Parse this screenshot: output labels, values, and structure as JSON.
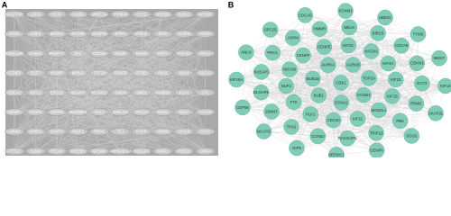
{
  "panel_a": {
    "label": "A",
    "nodes": [
      "GOLPH3L",
      "LDHD",
      "DCAF",
      "GINS2",
      "LRRC14",
      "TRIM46",
      "CCT2",
      "HDHD5",
      "ESPL1",
      "MYO1F",
      "EXO1",
      "CDC6",
      "MCM10",
      "KIF18B",
      "CENPW",
      "BRIP1",
      "POLQ",
      "E2F8",
      "CLSPN",
      "FANCI",
      "RAD51AP1",
      "CHEK1",
      "PKMYT1",
      "DTL",
      "CDC45",
      "MCM2",
      "MCM4",
      "ORC1",
      "POLE2",
      "RFC4",
      "CCNE2",
      "E2F7",
      "HJURP",
      "MYBL2",
      "TCF19",
      "FBXO5",
      "GTSE1",
      "SKA1",
      "SKA3",
      "CDCA3",
      "CDCA2",
      "KIFC1",
      "ESCO2",
      "NCAPH",
      "NCAPD2",
      "SMC4",
      "SMC2",
      "FAM83D",
      "PLK4",
      "STIL",
      "CENPU",
      "CENPK",
      "CENPN",
      "MIS18BP1",
      "KNL1",
      "ZWILCH",
      "SPC24",
      "DSN1",
      "NEK2",
      "TACC3",
      "LMNB1",
      "UHRF1",
      "DNMT1",
      "H2AFZ",
      "RRM1",
      "TK1",
      "DHFR",
      "GMNN",
      "CKS1B",
      "CKS2",
      "PTTG1",
      "AUNIP",
      "TROAP",
      "SHCBP1",
      "GPSM2",
      "ARHGAP11A",
      "IQGAP3",
      "MND1",
      "PSRC1",
      "DBF4"
    ]
  },
  "panel_b": {
    "label": "B",
    "nodes": [
      "CDK1",
      "CCNB1",
      "CCNA2",
      "BUB1",
      "BUB1B",
      "AURKA",
      "AURKB",
      "TOP2A",
      "KIF11",
      "CDC20",
      "PLK1",
      "TTK",
      "NUF2",
      "NDC80",
      "CENPF",
      "CENPE",
      "KIF2C",
      "KIF20A",
      "KIF4A",
      "KIF23",
      "KIF15",
      "MAD2L1",
      "CCNB2",
      "TPX2",
      "ZWINT",
      "DLGAP5",
      "NUSAP1",
      "PRC1",
      "ASPM",
      "HMMR",
      "MELK",
      "BIRC5",
      "CDCA8",
      "CDKN3",
      "ECT2",
      "RRM2",
      "PBK",
      "TRIP13",
      "RACGAP1",
      "NCAPG",
      "CEP55",
      "KIF18A",
      "ANLN",
      "SPC25",
      "CDCA5",
      "FOXM1",
      "UBE2C",
      "TYMS",
      "MKI67",
      "KIF14",
      "CKAP2L",
      "SGO2",
      "CENPA",
      "DEPDC1",
      "OIP5"
    ]
  }
}
